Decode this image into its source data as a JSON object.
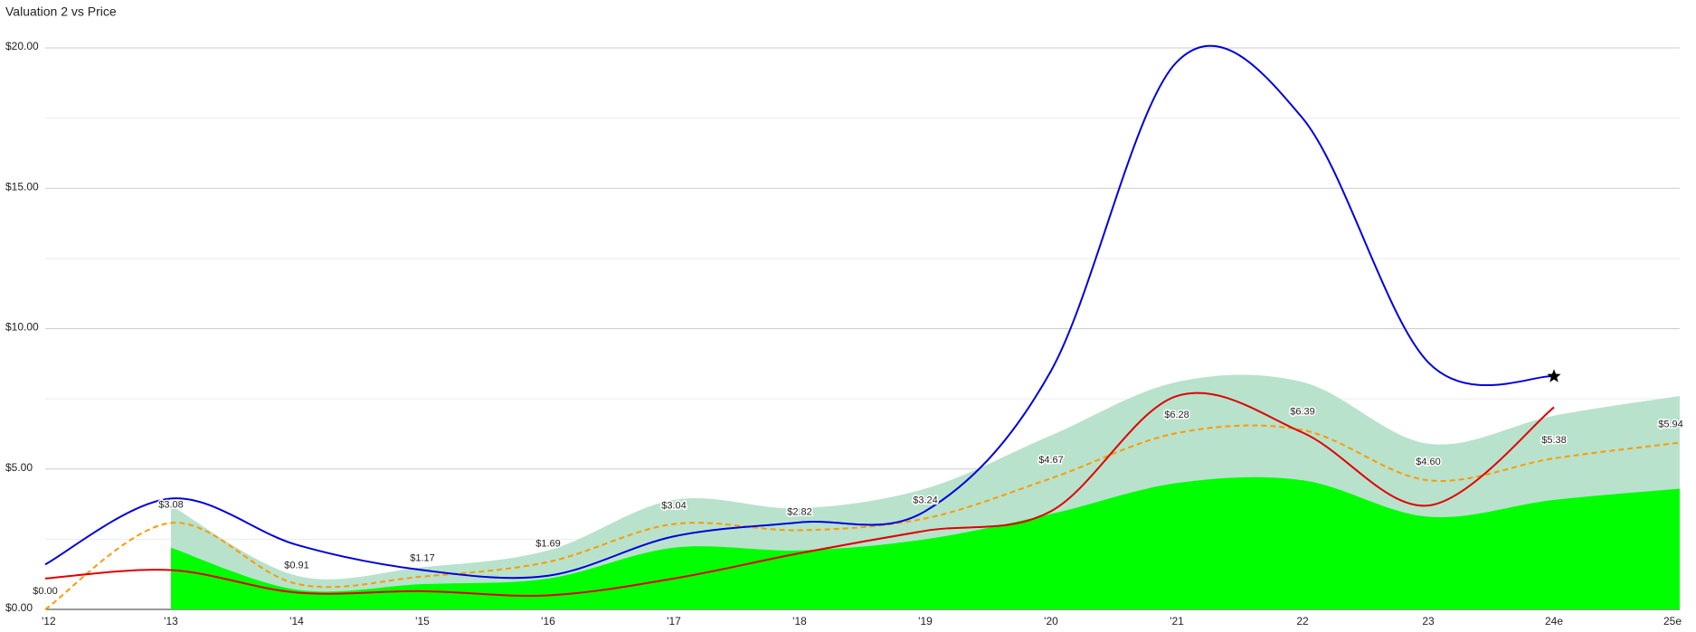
{
  "chart_data": {
    "type": "line",
    "title": "Valuation 2 vs Price",
    "categories": [
      "'12",
      "'13",
      "'14",
      "'15",
      "'16",
      "'17",
      "'18",
      "'19",
      "'20",
      "'21",
      "22",
      "23",
      "24e",
      "25e"
    ],
    "ylim": [
      0,
      20
    ],
    "yticks": [
      {
        "value": 0,
        "label": "$0.00"
      },
      {
        "value": 5,
        "label": "$5.00"
      },
      {
        "value": 10,
        "label": "$10.00"
      },
      {
        "value": 15,
        "label": "$15.00"
      },
      {
        "value": 20,
        "label": "$20.00"
      }
    ],
    "minor_yticks": [
      2.5,
      7.5,
      12.5,
      17.5
    ],
    "grid": true,
    "series": [
      {
        "color": "#0000dd",
        "kind": "line",
        "end_marker": "star",
        "values": [
          1.6,
          3.95,
          2.3,
          1.4,
          1.2,
          2.6,
          3.1,
          3.5,
          8.5,
          19.5,
          17.5,
          8.8,
          8.3,
          null
        ]
      },
      {
        "color": "#e00000",
        "kind": "line",
        "values": [
          1.1,
          1.4,
          0.6,
          0.65,
          0.5,
          1.1,
          2.0,
          2.8,
          3.5,
          7.6,
          6.3,
          3.7,
          7.2,
          null
        ]
      },
      {
        "color": "#ff9900",
        "kind": "line",
        "dashed": true,
        "values": [
          0.0,
          3.08,
          0.91,
          1.17,
          1.69,
          3.04,
          2.82,
          3.24,
          4.67,
          6.28,
          6.39,
          4.6,
          5.38,
          5.94
        ],
        "value_labels": [
          "$0.00",
          "$3.08",
          "$0.91",
          "$1.17",
          "$1.69",
          "$3.04",
          "$2.82",
          "$3.24",
          "$4.67",
          "$6.28",
          "$6.39",
          "$4.60",
          "$5.38",
          "$5.94"
        ]
      },
      {
        "color": "#b8e2cc",
        "kind": "area",
        "values": [
          null,
          3.7,
          1.2,
          1.5,
          2.1,
          3.9,
          3.6,
          4.3,
          6.2,
          8.1,
          8.1,
          5.9,
          6.9,
          7.6
        ]
      },
      {
        "color": "#00ff00",
        "kind": "area",
        "values": [
          null,
          2.2,
          0.7,
          0.9,
          1.1,
          2.2,
          2.1,
          2.5,
          3.4,
          4.5,
          4.6,
          3.3,
          3.9,
          4.3
        ]
      }
    ]
  }
}
